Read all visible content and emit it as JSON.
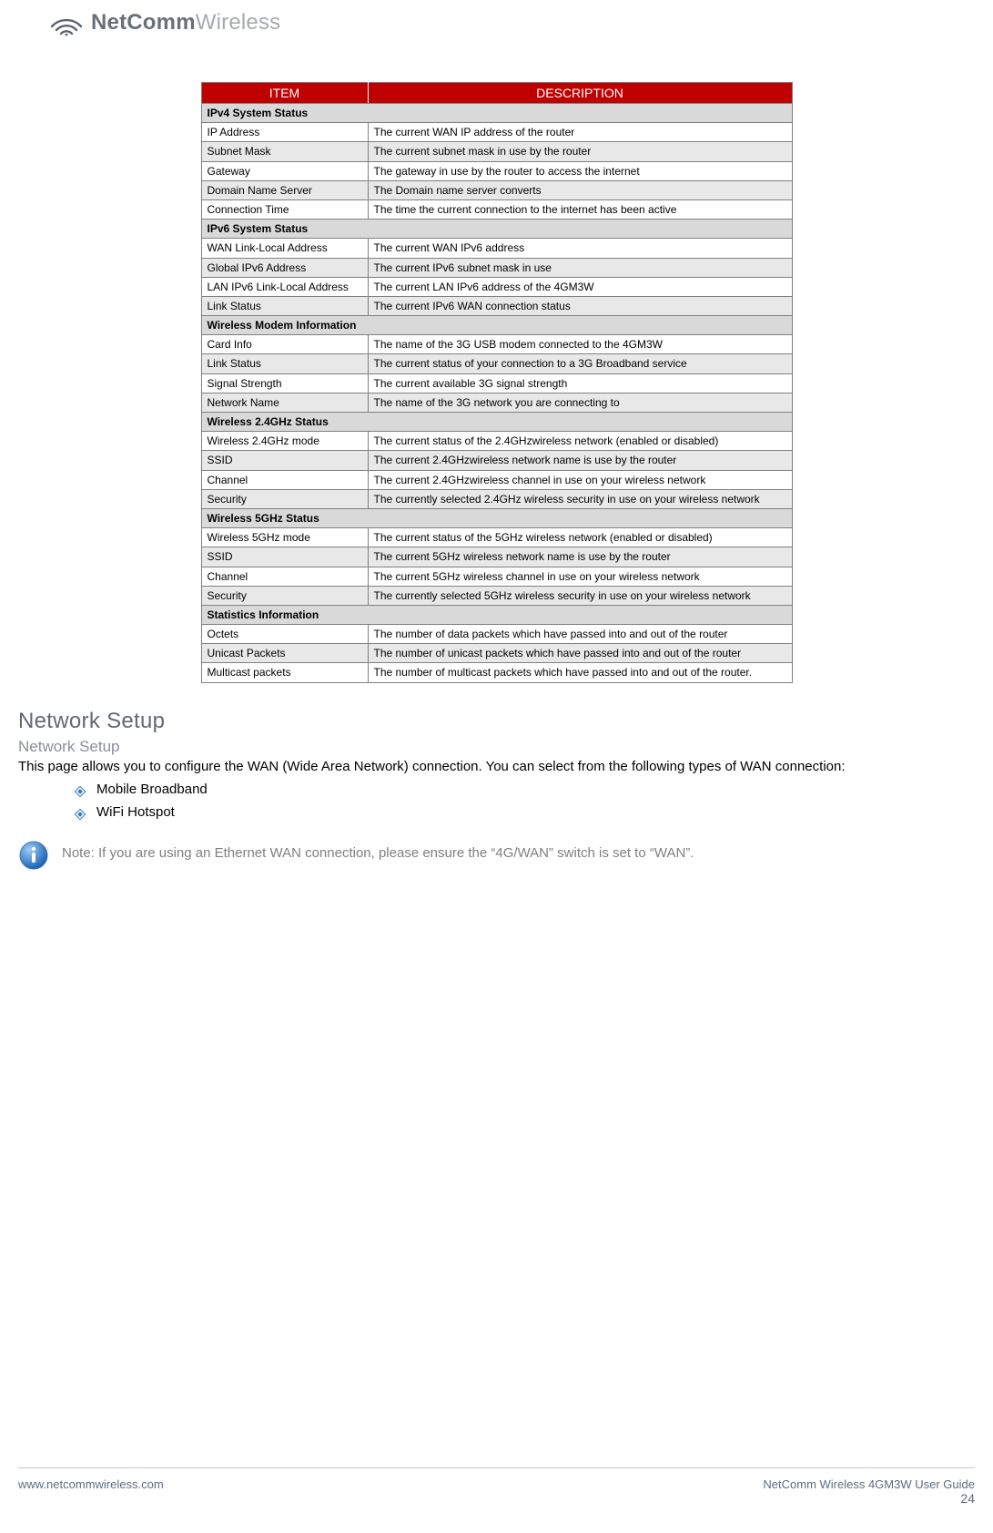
{
  "logo": {
    "bold": "NetComm",
    "light": "Wireless",
    "icon_colors": {
      "stroke": "#5a6570",
      "accent": "#5a6570"
    }
  },
  "table": {
    "header_bg": "#c00000",
    "header_text_color": "#ffffff",
    "border_color": "#808080",
    "alt_row_bg": "#e8e8e8",
    "section_row_bg": "#d9d9d9",
    "columns": [
      "ITEM",
      "DESCRIPTION"
    ],
    "groups": [
      {
        "title": "IPv4 System Status",
        "rows": [
          {
            "item": "IP Address",
            "desc": "The current WAN IP address of the router"
          },
          {
            "item": "Subnet Mask",
            "desc": "The current subnet mask in use by the router"
          },
          {
            "item": "Gateway",
            "desc": "The gateway in use by the router to access the internet"
          },
          {
            "item": "Domain Name Server",
            "desc": "The Domain name server converts"
          },
          {
            "item": "Connection Time",
            "desc": "The time the current connection to the internet has been active"
          }
        ]
      },
      {
        "title": "IPv6 System Status",
        "rows": [
          {
            "item": "WAN Link-Local Address",
            "desc": "The current WAN IPv6 address"
          },
          {
            "item": "Global IPv6 Address",
            "desc": "The current IPv6 subnet mask in use"
          },
          {
            "item": "LAN IPv6 Link-Local Address",
            "desc": "The current LAN IPv6 address of the 4GM3W"
          },
          {
            "item": "Link Status",
            "desc": "The current IPv6 WAN connection status"
          }
        ]
      },
      {
        "title": "Wireless Modem Information",
        "rows": [
          {
            "item": "Card Info",
            "desc": "The name of the 3G USB modem connected to the 4GM3W"
          },
          {
            "item": "Link Status",
            "desc": "The current status of your connection to a 3G Broadband service"
          },
          {
            "item": "Signal Strength",
            "desc": "The current available 3G signal strength"
          },
          {
            "item": "Network Name",
            "desc": "The name of the 3G network you are connecting to"
          }
        ]
      },
      {
        "title": "Wireless 2.4GHz Status",
        "rows": [
          {
            "item": "Wireless 2.4GHz mode",
            "desc": "The current status of the 2.4GHzwireless network (enabled or disabled)"
          },
          {
            "item": "SSID",
            "desc": "The current 2.4GHzwireless network name is use by the router"
          },
          {
            "item": "Channel",
            "desc": "The current 2.4GHzwireless channel in use on your wireless network"
          },
          {
            "item": "Security",
            "desc": "The currently selected 2.4GHz wireless security in use on your wireless network"
          }
        ]
      },
      {
        "title": "Wireless 5GHz Status",
        "rows": [
          {
            "item": "Wireless 5GHz mode",
            "desc": "The current status of the 5GHz wireless network (enabled or disabled)"
          },
          {
            "item": "SSID",
            "desc": "The current 5GHz wireless network name is use by the router"
          },
          {
            "item": "Channel",
            "desc": "The current 5GHz wireless channel in use on your wireless network"
          },
          {
            "item": "Security",
            "desc": "The currently selected 5GHz wireless security in use on your wireless network"
          }
        ]
      },
      {
        "title": "Statistics Information",
        "rows": [
          {
            "item": "Octets",
            "desc": "The number of data packets which have passed into and out of the router"
          },
          {
            "item": "Unicast Packets",
            "desc": "The number of unicast packets which have passed into and out of the router"
          },
          {
            "item": "Multicast packets",
            "desc": "The number of multicast packets which have passed into and out of the router."
          }
        ]
      }
    ]
  },
  "sections": {
    "title": "Network Setup",
    "subtitle": "Network Setup",
    "intro": "This page allows you to configure the WAN (Wide Area Network) connection. You can select from the following types of WAN connection:",
    "bullets": [
      "Mobile Broadband",
      "WiFi Hotspot"
    ],
    "bullet_icon_color": "#2f78c2",
    "note": "Note: If you are using an Ethernet WAN connection, please ensure the “4G/WAN” switch is set to “WAN”.",
    "info_colors": {
      "ring": "#2f78c2",
      "fill_top": "#7fb8f2",
      "fill_bottom": "#1e63b5",
      "letter": "#ffffff"
    }
  },
  "footer": {
    "left": "www.netcommwireless.com",
    "right": "NetComm Wireless 4GM3W User Guide",
    "page": "24",
    "color": "#5c6d83"
  }
}
